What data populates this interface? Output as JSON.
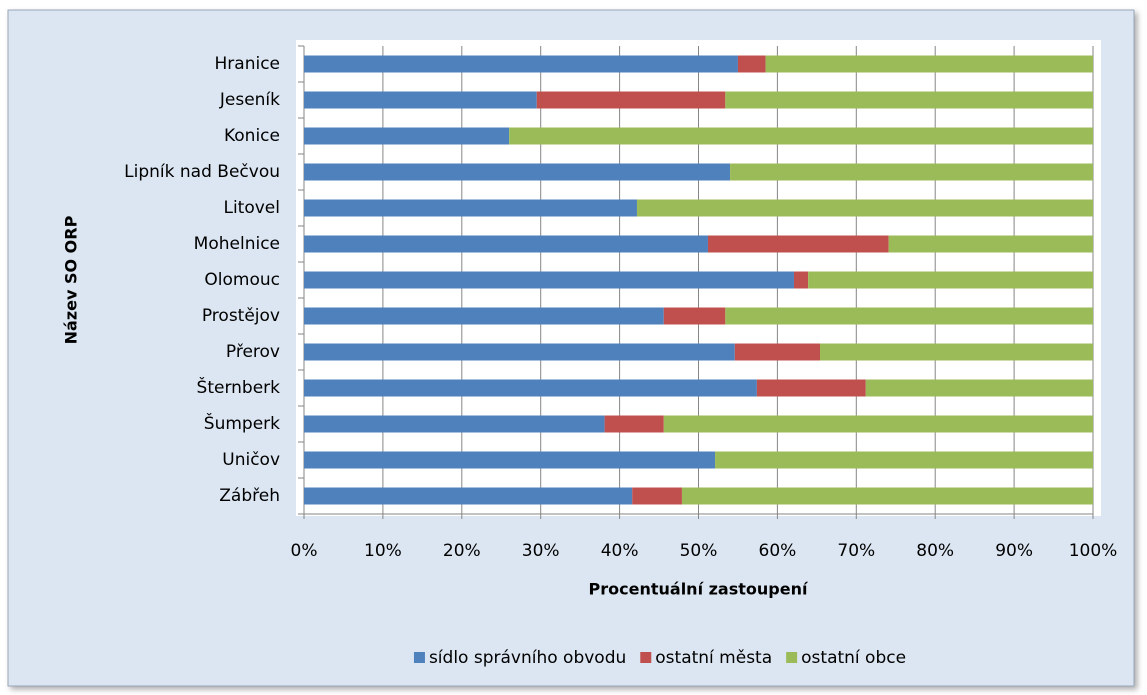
{
  "chart_data": {
    "type": "stacked-barh",
    "categories": [
      "Hranice",
      "Jeseník",
      "Konice",
      "Lipník nad Bečvou",
      "Litovel",
      "Mohelnice",
      "Olomouc",
      "Prostějov",
      "Přerov",
      "Šternberk",
      "Šumperk",
      "Uničov",
      "Zábřeh"
    ],
    "series": [
      {
        "name": "sídlo správního obvodu",
        "color": "#4f81bd",
        "values": [
          55,
          29.5,
          26,
          54,
          42.2,
          51.2,
          62.1,
          45.6,
          54.6,
          57.4,
          38.1,
          52.1,
          41.6
        ]
      },
      {
        "name": "ostatní města",
        "color": "#c0504d",
        "values": [
          3.5,
          23.9,
          0,
          0,
          0,
          22.9,
          1.8,
          7.8,
          10.8,
          13.8,
          7.5,
          0,
          6.3
        ]
      },
      {
        "name": "ostatní obce",
        "color": "#9bbb59",
        "values": [
          41.5,
          46.6,
          74,
          46,
          57.8,
          25.9,
          36.1,
          46.6,
          34.6,
          28.8,
          54.4,
          47.9,
          52.1
        ]
      }
    ],
    "xlim": [
      0,
      100
    ],
    "xticks": [
      {
        "value": 0,
        "label": "0%"
      },
      {
        "value": 10,
        "label": "10%"
      },
      {
        "value": 20,
        "label": "20%"
      },
      {
        "value": 30,
        "label": "30%"
      },
      {
        "value": 40,
        "label": "40%"
      },
      {
        "value": 50,
        "label": "50%"
      },
      {
        "value": 60,
        "label": "60%"
      },
      {
        "value": 70,
        "label": "70%"
      },
      {
        "value": 80,
        "label": "80%"
      },
      {
        "value": 90,
        "label": "90%"
      },
      {
        "value": 100,
        "label": "100%"
      }
    ],
    "xlabel": "Procentuální zastoupení",
    "ylabel": "Název SO ORP",
    "grid": true,
    "legend": "bottom"
  }
}
